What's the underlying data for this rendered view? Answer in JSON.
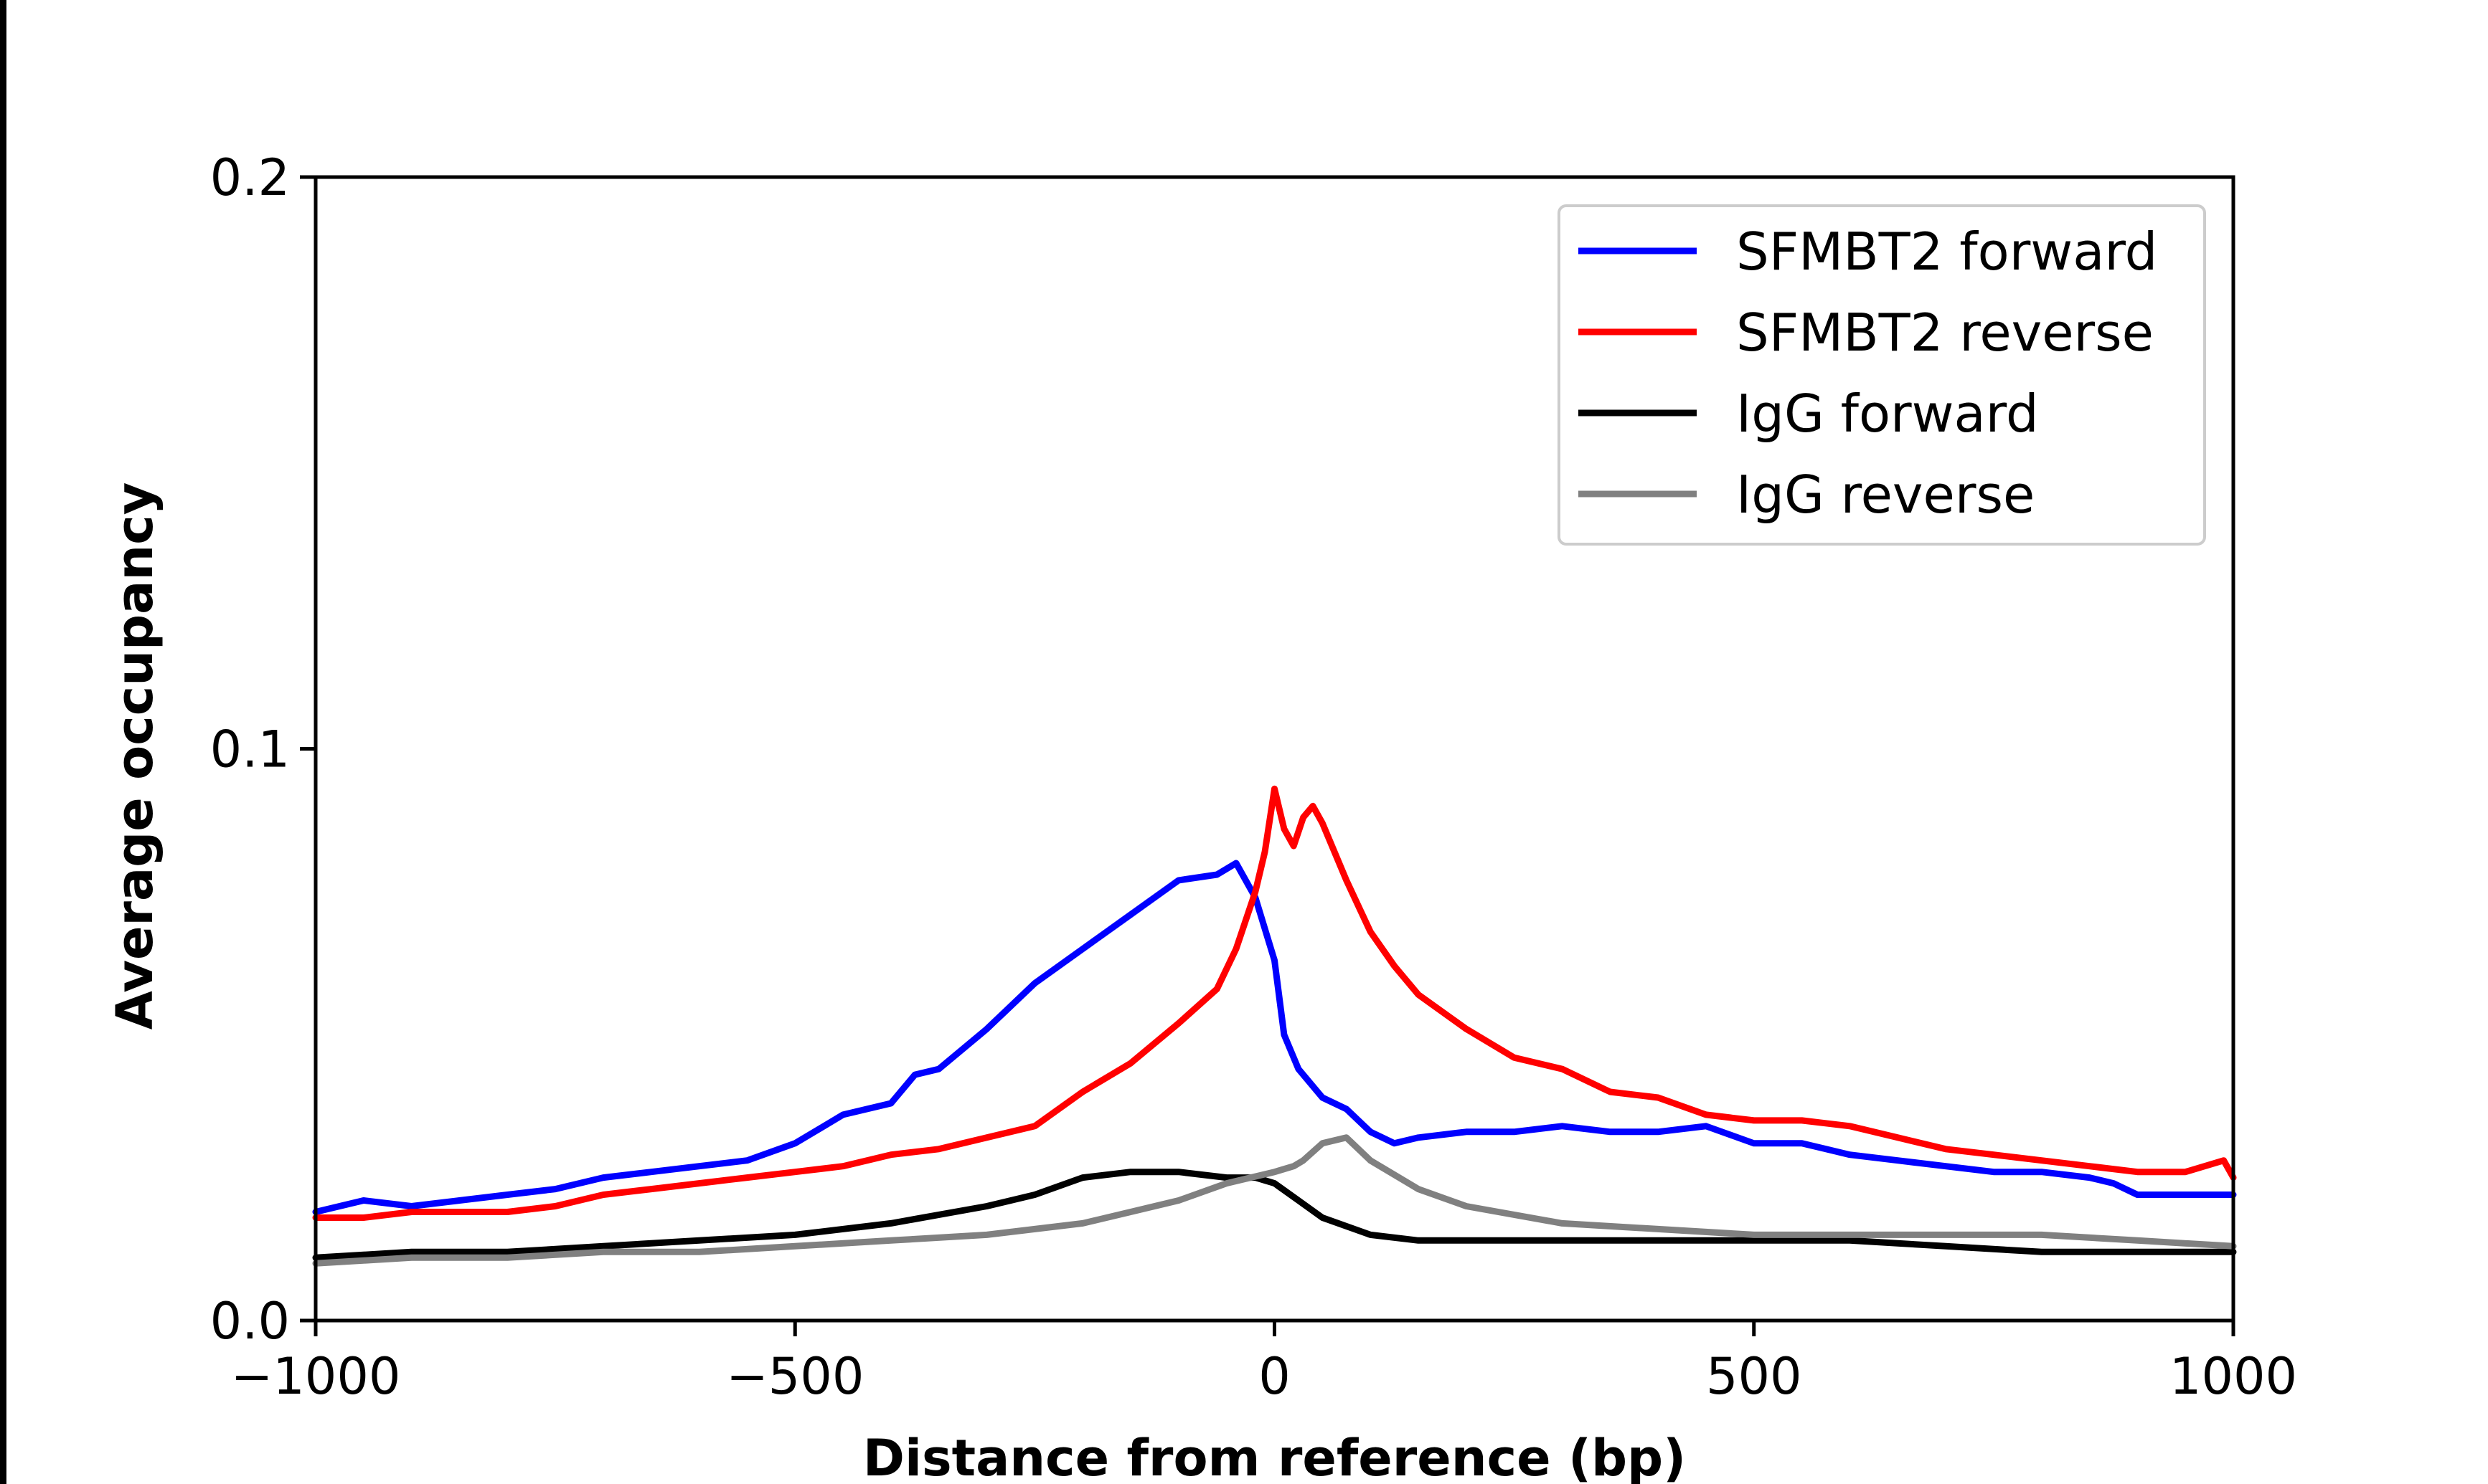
{
  "chart_data": {
    "type": "line",
    "title": "",
    "xlabel": "Distance from reference (bp)",
    "ylabel": "Average occupancy",
    "xlim": [
      -1000,
      1000
    ],
    "ylim": [
      0,
      0.2
    ],
    "xticks": [
      -1000,
      -500,
      0,
      500,
      1000
    ],
    "xtick_labels": [
      "−1000",
      "−500",
      "0",
      "500",
      "1000"
    ],
    "yticks": [
      0,
      0.1,
      0.2
    ],
    "ytick_labels": [
      "0.0",
      "0.1",
      "0.2"
    ],
    "grid": false,
    "legend": "top-right",
    "series": [
      {
        "name": "SFMBT2 forward",
        "color": "#0000ff",
        "x": [
          -1000,
          -950,
          -900,
          -850,
          -800,
          -750,
          -700,
          -650,
          -600,
          -550,
          -500,
          -450,
          -400,
          -375,
          -350,
          -300,
          -250,
          -200,
          -150,
          -100,
          -60,
          -40,
          -20,
          0,
          10,
          25,
          50,
          75,
          100,
          125,
          150,
          200,
          250,
          300,
          350,
          400,
          450,
          500,
          550,
          600,
          650,
          700,
          750,
          800,
          850,
          875,
          900,
          950,
          1000
        ],
        "y": [
          0.019,
          0.021,
          0.02,
          0.021,
          0.022,
          0.023,
          0.025,
          0.026,
          0.027,
          0.028,
          0.031,
          0.036,
          0.038,
          0.043,
          0.044,
          0.051,
          0.059,
          0.065,
          0.071,
          0.077,
          0.078,
          0.08,
          0.074,
          0.063,
          0.05,
          0.044,
          0.039,
          0.037,
          0.033,
          0.031,
          0.032,
          0.033,
          0.033,
          0.034,
          0.033,
          0.033,
          0.034,
          0.031,
          0.031,
          0.029,
          0.028,
          0.027,
          0.026,
          0.026,
          0.025,
          0.024,
          0.022,
          0.022,
          0.022
        ]
      },
      {
        "name": "SFMBT2 reverse",
        "color": "#ff0000",
        "x": [
          -1000,
          -950,
          -900,
          -850,
          -800,
          -750,
          -700,
          -650,
          -600,
          -550,
          -500,
          -450,
          -400,
          -350,
          -300,
          -250,
          -200,
          -150,
          -100,
          -60,
          -40,
          -20,
          -10,
          0,
          10,
          20,
          30,
          40,
          50,
          75,
          100,
          125,
          150,
          200,
          250,
          300,
          350,
          400,
          450,
          500,
          550,
          600,
          650,
          700,
          750,
          800,
          850,
          900,
          950,
          990,
          1000
        ],
        "y": [
          0.018,
          0.018,
          0.019,
          0.019,
          0.019,
          0.02,
          0.022,
          0.023,
          0.024,
          0.025,
          0.026,
          0.027,
          0.029,
          0.03,
          0.032,
          0.034,
          0.04,
          0.045,
          0.052,
          0.058,
          0.065,
          0.075,
          0.082,
          0.093,
          0.086,
          0.083,
          0.088,
          0.09,
          0.087,
          0.077,
          0.068,
          0.062,
          0.057,
          0.051,
          0.046,
          0.044,
          0.04,
          0.039,
          0.036,
          0.035,
          0.035,
          0.034,
          0.032,
          0.03,
          0.029,
          0.028,
          0.027,
          0.026,
          0.026,
          0.028,
          0.025
        ]
      },
      {
        "name": "IgG forward",
        "color": "#000000",
        "x": [
          -1000,
          -900,
          -800,
          -700,
          -600,
          -500,
          -400,
          -300,
          -250,
          -200,
          -150,
          -100,
          -50,
          -20,
          0,
          25,
          50,
          100,
          150,
          200,
          300,
          400,
          500,
          600,
          700,
          800,
          900,
          1000
        ],
        "y": [
          0.011,
          0.012,
          0.012,
          0.013,
          0.014,
          0.015,
          0.017,
          0.02,
          0.022,
          0.025,
          0.026,
          0.026,
          0.025,
          0.025,
          0.024,
          0.021,
          0.018,
          0.015,
          0.014,
          0.014,
          0.014,
          0.014,
          0.014,
          0.014,
          0.013,
          0.012,
          0.012,
          0.012
        ]
      },
      {
        "name": "IgG reverse",
        "color": "#808080",
        "x": [
          -1000,
          -900,
          -800,
          -700,
          -600,
          -500,
          -400,
          -300,
          -200,
          -150,
          -100,
          -50,
          0,
          20,
          30,
          50,
          75,
          100,
          150,
          200,
          300,
          400,
          500,
          600,
          700,
          800,
          900,
          1000
        ],
        "y": [
          0.01,
          0.011,
          0.011,
          0.012,
          0.012,
          0.013,
          0.014,
          0.015,
          0.017,
          0.019,
          0.021,
          0.024,
          0.026,
          0.027,
          0.028,
          0.031,
          0.032,
          0.028,
          0.023,
          0.02,
          0.017,
          0.016,
          0.015,
          0.015,
          0.015,
          0.015,
          0.014,
          0.013
        ]
      }
    ]
  }
}
